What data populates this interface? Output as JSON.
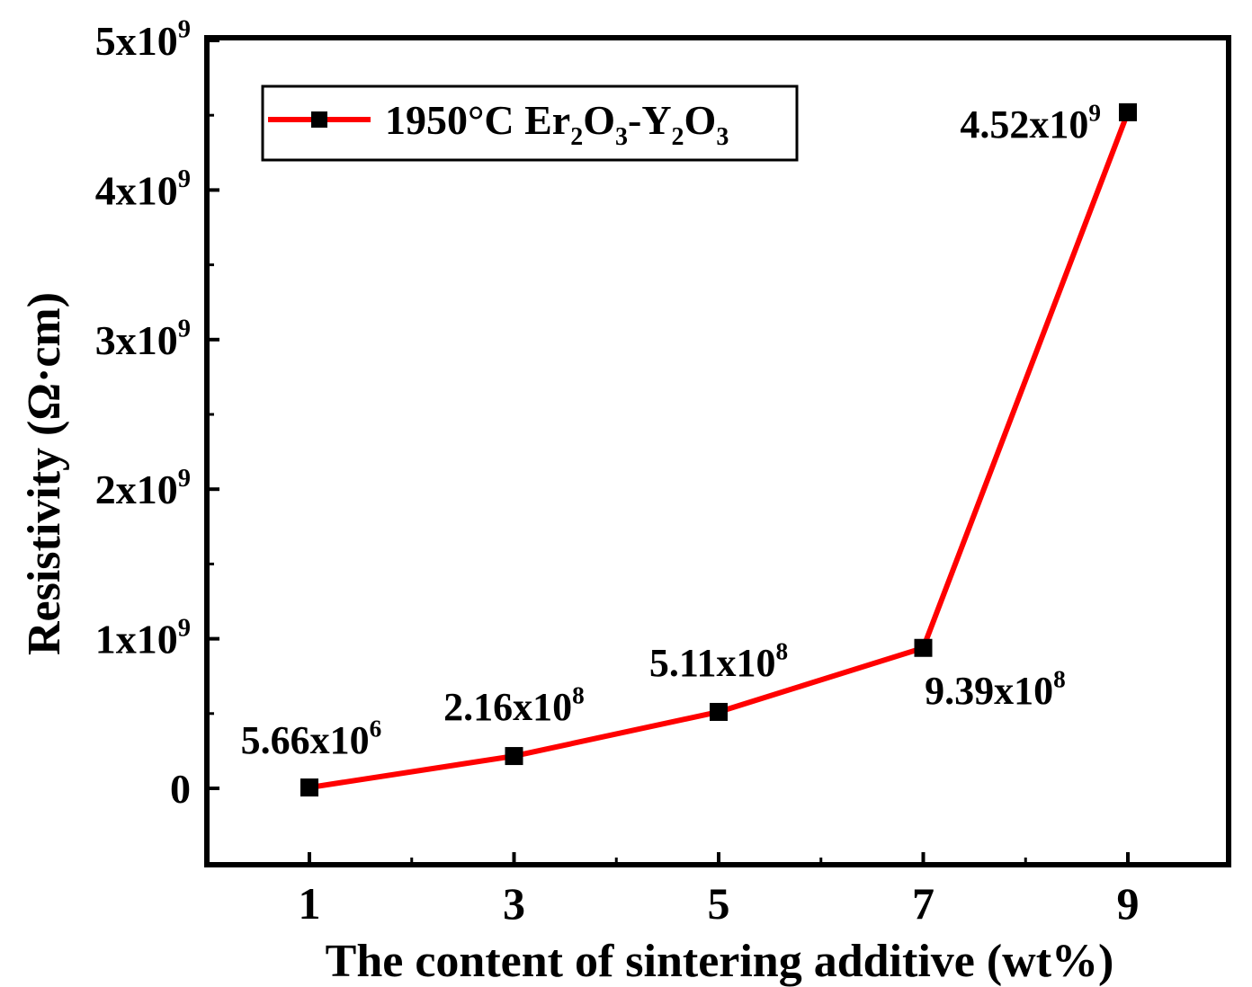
{
  "chart_data": {
    "type": "line",
    "title": "",
    "xlabel": "The content of sintering additive (wt%)",
    "ylabel": "Resistivity (Ω·cm)",
    "x": [
      1,
      3,
      5,
      7,
      9
    ],
    "xlim": [
      0,
      10
    ],
    "ylim": [
      -500000000.0,
      5000000000.0
    ],
    "x_ticks": [
      {
        "value": 1,
        "label": "1"
      },
      {
        "value": 3,
        "label": "3"
      },
      {
        "value": 5,
        "label": "5"
      },
      {
        "value": 7,
        "label": "7"
      },
      {
        "value": 9,
        "label": "9"
      }
    ],
    "y_ticks": [
      {
        "value": 0,
        "mantissa": "0",
        "exp": ""
      },
      {
        "value": 1000000000.0,
        "mantissa": "1x10",
        "exp": "9"
      },
      {
        "value": 2000000000.0,
        "mantissa": "2x10",
        "exp": "9"
      },
      {
        "value": 3000000000.0,
        "mantissa": "3x10",
        "exp": "9"
      },
      {
        "value": 4000000000.0,
        "mantissa": "4x10",
        "exp": "9"
      },
      {
        "value": 5000000000.0,
        "mantissa": "5x10",
        "exp": "9"
      }
    ],
    "series": [
      {
        "name": "1950°C Er2O3-Y2O3",
        "color": "#ff0000",
        "marker_color": "#000000",
        "values": [
          5660000.0,
          216000000.0,
          511000000.0,
          939000000.0,
          4520000000.0
        ]
      }
    ],
    "data_labels": [
      {
        "mantissa": "5.66x10",
        "exp": "6",
        "side": "above"
      },
      {
        "mantissa": "2.16x10",
        "exp": "8",
        "side": "above"
      },
      {
        "mantissa": "5.11x10",
        "exp": "8",
        "side": "above"
      },
      {
        "mantissa": "9.39x10",
        "exp": "8",
        "side": "below"
      },
      {
        "mantissa": "4.52x10",
        "exp": "9",
        "side": "left"
      }
    ],
    "legend": {
      "position": "top-left",
      "parts": [
        {
          "t": "1950°C  Er",
          "sub": false
        },
        {
          "t": "2",
          "sub": true
        },
        {
          "t": "O",
          "sub": false
        },
        {
          "t": "3",
          "sub": true
        },
        {
          "t": "-Y",
          "sub": false
        },
        {
          "t": "2",
          "sub": true
        },
        {
          "t": "O",
          "sub": false
        },
        {
          "t": "3",
          "sub": true
        }
      ]
    },
    "grid": false
  }
}
